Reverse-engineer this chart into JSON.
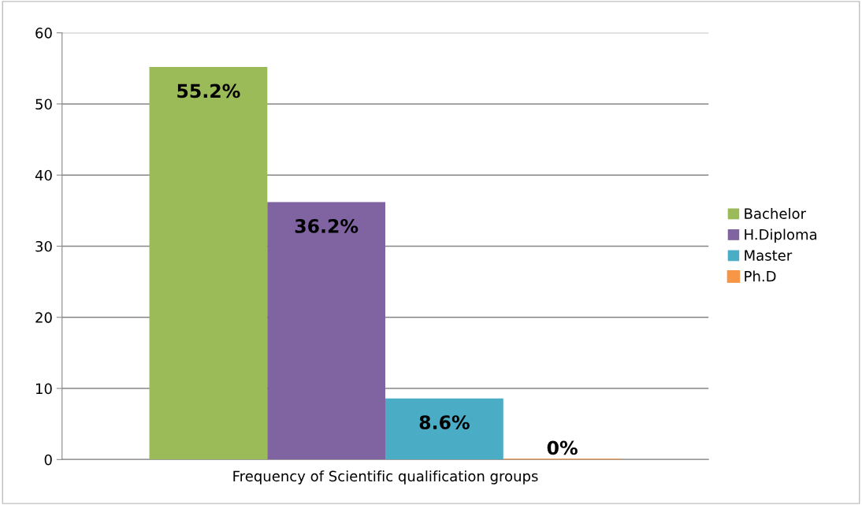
{
  "chart_data": {
    "type": "bar",
    "categories": [
      "Frequency of Scientific qualification groups"
    ],
    "series": [
      {
        "name": "Bachelor",
        "color": "#9bbb59",
        "values": [
          55.2
        ],
        "value_labels": [
          "55.2%"
        ]
      },
      {
        "name": "H.Diploma",
        "color": "#8064a2",
        "values": [
          36.2
        ],
        "value_labels": [
          "36.2%"
        ]
      },
      {
        "name": "Master",
        "color": "#4bacc6",
        "values": [
          8.6
        ],
        "value_labels": [
          "8.6%"
        ]
      },
      {
        "name": "Ph.D",
        "color": "#f79646",
        "values": [
          0
        ],
        "value_labels": [
          "0%"
        ]
      }
    ],
    "ylim": [
      0,
      60
    ],
    "yticks": [
      0,
      10,
      20,
      30,
      40,
      50,
      60
    ],
    "grid": "y",
    "legend": "right"
  }
}
